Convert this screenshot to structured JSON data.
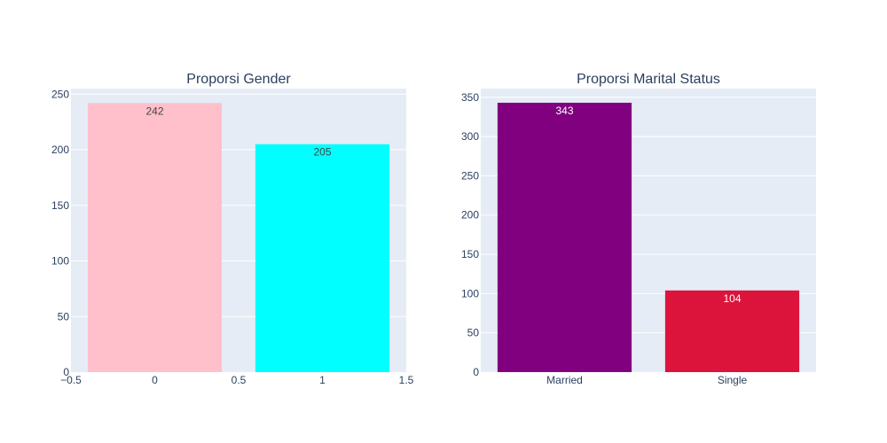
{
  "chart_data": [
    {
      "type": "bar",
      "title": "Proporsi Gender",
      "xaxis": "numeric",
      "x": [
        0,
        1
      ],
      "values": [
        242,
        205
      ],
      "value_labels": [
        "242",
        "205"
      ],
      "colors": [
        "#ffc0cb",
        "#00ffff"
      ],
      "label_colors": [
        "#444444",
        "#444444"
      ],
      "xlim": [
        -0.5,
        1.5
      ],
      "xticks": [
        -0.5,
        0,
        0.5,
        1,
        1.5
      ],
      "xtick_labels": [
        "−0.5",
        "0",
        "0.5",
        "1",
        "1.5"
      ],
      "ylim": [
        0,
        255
      ],
      "yticks": [
        0,
        50,
        100,
        150,
        200,
        250
      ],
      "grid": true,
      "background": "#e5ecf6"
    },
    {
      "type": "bar",
      "title": "Proporsi Marital Status",
      "xaxis": "category",
      "categories": [
        "Married",
        "Single"
      ],
      "values": [
        343,
        104
      ],
      "value_labels": [
        "343",
        "104"
      ],
      "colors": [
        "#800080",
        "#dc143c"
      ],
      "label_colors": [
        "#ffffff",
        "#ffffff"
      ],
      "ylim": [
        0,
        361
      ],
      "yticks": [
        0,
        50,
        100,
        150,
        200,
        250,
        300,
        350
      ],
      "grid": true,
      "background": "#e5ecf6"
    }
  ]
}
